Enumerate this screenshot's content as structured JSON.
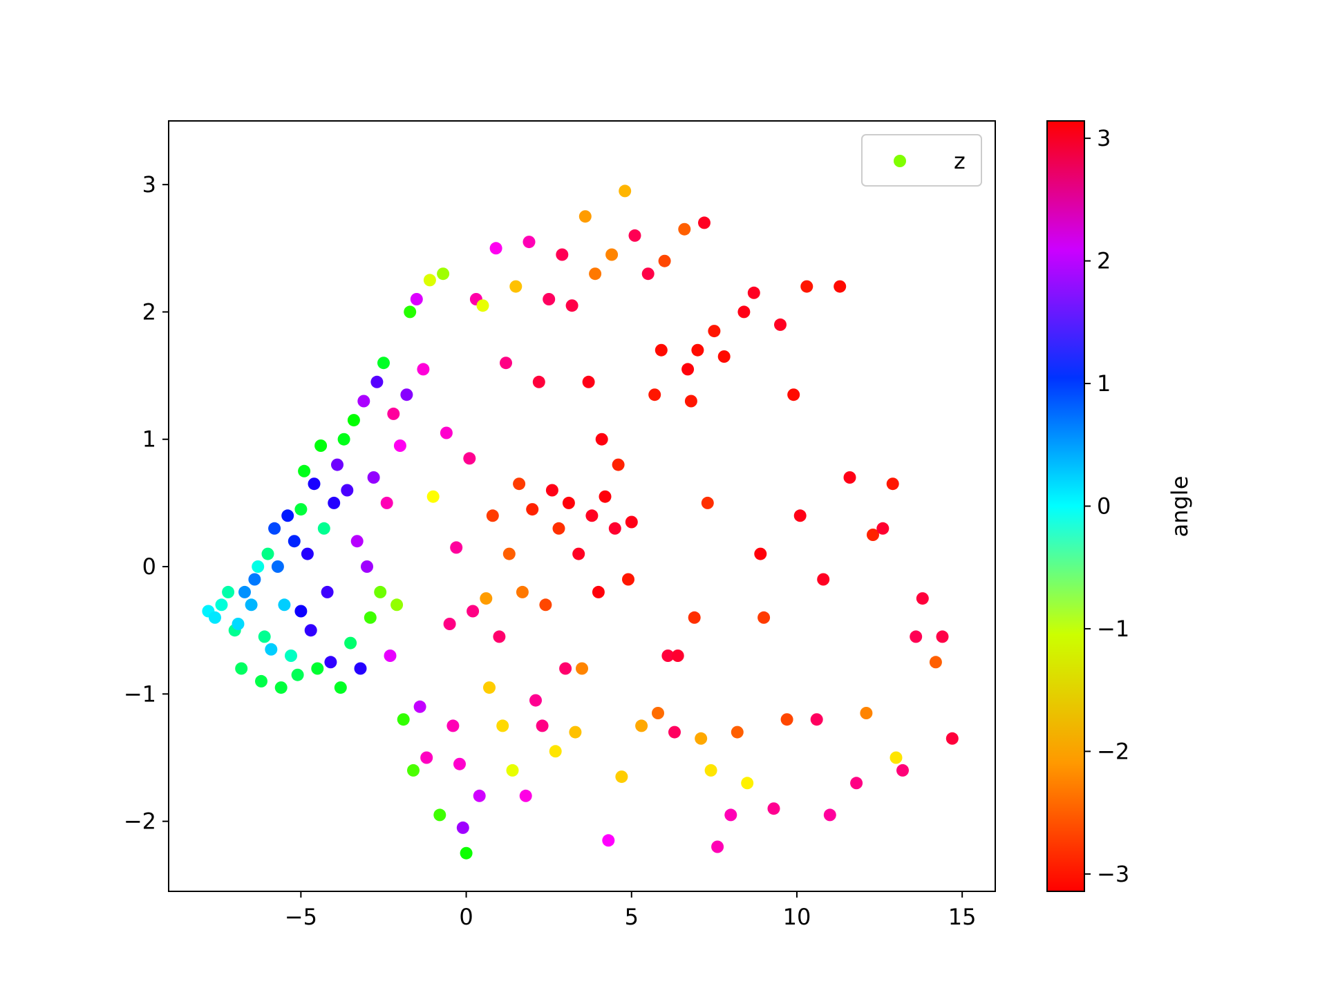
{
  "chart_data": {
    "type": "scatter",
    "title": "",
    "xlabel": "",
    "ylabel": "",
    "xlim": [
      -9,
      16
    ],
    "ylim": [
      -2.55,
      3.5
    ],
    "x_ticks": [
      -5,
      0,
      5,
      10,
      15
    ],
    "x_tick_labels": [
      "−5",
      "0",
      "5",
      "10",
      "15"
    ],
    "y_ticks": [
      -2,
      -1,
      0,
      1,
      2,
      3
    ],
    "y_tick_labels": [
      "−2",
      "−1",
      "0",
      "1",
      "2",
      "3"
    ],
    "grid": false,
    "legend": {
      "position": "upper-right",
      "entries": [
        {
          "label": "z",
          "color": "#80ff00"
        }
      ]
    },
    "colorbar": {
      "label": "angle",
      "colormap": "hsv",
      "vmin": -3.1416,
      "vmax": 3.1416,
      "ticks": [
        -3,
        -2,
        -1,
        0,
        1,
        2,
        3
      ],
      "tick_labels": [
        "−3",
        "−2",
        "−1",
        "0",
        "1",
        "2",
        "3"
      ]
    },
    "series": [
      {
        "name": "z",
        "color_by": "angle",
        "points": [
          [
            -7.8,
            -0.35,
            0.05
          ],
          [
            -7.6,
            -0.4,
            0.1
          ],
          [
            -7.4,
            -0.3,
            -0.15
          ],
          [
            -7.2,
            -0.2,
            -0.35
          ],
          [
            -7.0,
            -0.5,
            -0.45
          ],
          [
            -6.9,
            -0.45,
            0.15
          ],
          [
            -6.8,
            -0.8,
            -0.65
          ],
          [
            -6.7,
            -0.2,
            0.45
          ],
          [
            -6.5,
            -0.3,
            0.3
          ],
          [
            -6.4,
            -0.1,
            0.55
          ],
          [
            -6.3,
            0.0,
            -0.1
          ],
          [
            -6.2,
            -0.9,
            -0.75
          ],
          [
            -6.1,
            -0.55,
            -0.45
          ],
          [
            -6.0,
            0.1,
            -0.5
          ],
          [
            -5.9,
            -0.65,
            0.2
          ],
          [
            -5.8,
            0.3,
            0.75
          ],
          [
            -5.7,
            0.0,
            0.6
          ],
          [
            -5.6,
            -0.95,
            -0.8
          ],
          [
            -5.5,
            -0.3,
            0.2
          ],
          [
            -5.4,
            0.4,
            0.95
          ],
          [
            -5.3,
            -0.7,
            -0.25
          ],
          [
            -5.2,
            0.2,
            0.9
          ],
          [
            -5.1,
            -0.85,
            -0.7
          ],
          [
            -5.0,
            -0.35,
            1.1
          ],
          [
            -5.0,
            0.45,
            -0.8
          ],
          [
            -4.9,
            0.75,
            -0.95
          ],
          [
            -4.8,
            0.1,
            1.2
          ],
          [
            -4.7,
            -0.5,
            1.25
          ],
          [
            -4.6,
            0.65,
            1.15
          ],
          [
            -4.5,
            -0.8,
            -0.85
          ],
          [
            -4.4,
            0.95,
            -1.0
          ],
          [
            -4.3,
            0.3,
            -0.45
          ],
          [
            -4.2,
            -0.2,
            1.3
          ],
          [
            -4.1,
            -0.75,
            1.25
          ],
          [
            -4.0,
            0.5,
            1.2
          ],
          [
            -3.9,
            0.8,
            1.5
          ],
          [
            -3.8,
            -0.95,
            -0.9
          ],
          [
            -3.7,
            1.0,
            -0.95
          ],
          [
            -3.6,
            0.6,
            1.35
          ],
          [
            -3.5,
            -0.6,
            -0.6
          ],
          [
            -3.4,
            1.15,
            -1.05
          ],
          [
            -3.3,
            0.2,
            1.8
          ],
          [
            -3.2,
            -0.8,
            1.2
          ],
          [
            -3.1,
            1.3,
            1.75
          ],
          [
            -3.0,
            0.0,
            1.7
          ],
          [
            -2.9,
            -0.4,
            -1.3
          ],
          [
            -2.8,
            0.7,
            1.65
          ],
          [
            -2.7,
            1.45,
            1.4
          ],
          [
            -2.6,
            -0.2,
            -1.5
          ],
          [
            -2.5,
            1.6,
            -0.9
          ],
          [
            -2.4,
            0.5,
            2.4
          ],
          [
            -2.3,
            -0.7,
            2.0
          ],
          [
            -2.2,
            1.2,
            2.5
          ],
          [
            -2.1,
            -0.3,
            -1.65
          ],
          [
            -2.0,
            0.95,
            2.15
          ],
          [
            -1.9,
            -1.2,
            -1.25
          ],
          [
            -1.8,
            1.35,
            1.6
          ],
          [
            -1.7,
            2.0,
            -1.2
          ],
          [
            -1.6,
            -1.6,
            -1.35
          ],
          [
            -1.5,
            2.1,
            1.95
          ],
          [
            -1.4,
            -1.1,
            1.85
          ],
          [
            -1.3,
            1.55,
            2.25
          ],
          [
            -1.2,
            -1.5,
            2.35
          ],
          [
            -1.1,
            2.25,
            -1.95
          ],
          [
            -1.0,
            0.55,
            -2.1
          ],
          [
            -0.8,
            -1.95,
            -1.3
          ],
          [
            -0.7,
            2.3,
            -1.7
          ],
          [
            -0.6,
            1.05,
            2.3
          ],
          [
            -0.5,
            -0.45,
            2.6
          ],
          [
            -0.4,
            -1.25,
            2.4
          ],
          [
            -0.3,
            0.15,
            2.5
          ],
          [
            -0.2,
            -1.55,
            2.3
          ],
          [
            -0.1,
            -2.05,
            1.7
          ],
          [
            0.0,
            -2.25,
            -1.1
          ],
          [
            0.1,
            0.85,
            2.55
          ],
          [
            0.2,
            -0.35,
            2.6
          ],
          [
            0.3,
            2.1,
            2.45
          ],
          [
            0.4,
            -1.8,
            1.9
          ],
          [
            0.5,
            2.05,
            -2.0
          ],
          [
            0.6,
            -0.25,
            -2.5
          ],
          [
            0.7,
            -0.95,
            -2.3
          ],
          [
            0.8,
            0.4,
            -2.9
          ],
          [
            0.9,
            2.5,
            2.15
          ],
          [
            1.0,
            -0.55,
            2.7
          ],
          [
            1.1,
            -1.25,
            -2.25
          ],
          [
            1.2,
            1.6,
            2.6
          ],
          [
            1.3,
            0.1,
            -2.75
          ],
          [
            1.4,
            -1.6,
            -2.0
          ],
          [
            1.5,
            2.2,
            -2.35
          ],
          [
            1.6,
            0.65,
            -2.9
          ],
          [
            1.7,
            -0.2,
            -2.65
          ],
          [
            1.8,
            -1.8,
            2.2
          ],
          [
            1.9,
            2.55,
            2.4
          ],
          [
            2.0,
            0.45,
            -3.0
          ],
          [
            2.1,
            -1.05,
            2.55
          ],
          [
            2.2,
            1.45,
            2.9
          ],
          [
            2.3,
            -1.25,
            2.6
          ],
          [
            2.4,
            -0.3,
            -2.85
          ],
          [
            2.5,
            2.1,
            2.75
          ],
          [
            2.6,
            0.6,
            3.05
          ],
          [
            2.7,
            -1.45,
            -2.2
          ],
          [
            2.8,
            0.3,
            -2.95
          ],
          [
            2.9,
            2.45,
            2.8
          ],
          [
            3.0,
            -0.8,
            2.7
          ],
          [
            3.1,
            0.5,
            3.1
          ],
          [
            3.2,
            2.05,
            2.85
          ],
          [
            3.3,
            -1.3,
            -2.35
          ],
          [
            3.4,
            0.1,
            3.0
          ],
          [
            3.5,
            -0.8,
            -2.6
          ],
          [
            3.6,
            2.75,
            -2.5
          ],
          [
            3.7,
            1.45,
            3.05
          ],
          [
            3.8,
            0.4,
            3.0
          ],
          [
            3.9,
            2.3,
            -2.65
          ],
          [
            4.0,
            -0.2,
            3.1
          ],
          [
            4.1,
            1.0,
            3.08
          ],
          [
            4.2,
            0.55,
            3.1
          ],
          [
            4.3,
            -2.15,
            2.1
          ],
          [
            4.4,
            2.45,
            -2.6
          ],
          [
            4.5,
            0.3,
            2.95
          ],
          [
            4.6,
            0.8,
            -3.0
          ],
          [
            4.7,
            -1.65,
            -2.3
          ],
          [
            4.8,
            2.95,
            -2.4
          ],
          [
            4.9,
            -0.1,
            -3.05
          ],
          [
            5.0,
            0.35,
            3.05
          ],
          [
            5.1,
            2.6,
            2.8
          ],
          [
            5.3,
            -1.25,
            -2.45
          ],
          [
            5.5,
            2.3,
            2.85
          ],
          [
            5.7,
            1.35,
            -3.05
          ],
          [
            5.8,
            -1.15,
            -2.7
          ],
          [
            5.9,
            1.7,
            -3.1
          ],
          [
            6.0,
            2.4,
            -2.85
          ],
          [
            6.1,
            -0.7,
            2.9
          ],
          [
            6.3,
            -1.3,
            2.75
          ],
          [
            6.4,
            -0.7,
            2.95
          ],
          [
            6.6,
            2.65,
            -2.75
          ],
          [
            6.7,
            1.55,
            3.1
          ],
          [
            6.8,
            1.3,
            -3.05
          ],
          [
            6.9,
            -0.4,
            -2.95
          ],
          [
            7.0,
            1.7,
            -3.1
          ],
          [
            7.1,
            -1.35,
            -2.45
          ],
          [
            7.2,
            2.7,
            3.0
          ],
          [
            7.3,
            0.5,
            -2.95
          ],
          [
            7.4,
            -1.6,
            -2.2
          ],
          [
            7.5,
            1.85,
            -3.05
          ],
          [
            7.6,
            -2.2,
            2.4
          ],
          [
            7.8,
            1.65,
            -3.1
          ],
          [
            8.0,
            -1.95,
            2.4
          ],
          [
            8.2,
            -1.3,
            -2.75
          ],
          [
            8.4,
            2.0,
            3.05
          ],
          [
            8.5,
            -1.7,
            -2.15
          ],
          [
            8.7,
            2.15,
            3.0
          ],
          [
            8.9,
            0.1,
            3.1
          ],
          [
            9.0,
            -0.4,
            -2.9
          ],
          [
            9.3,
            -1.9,
            2.55
          ],
          [
            9.5,
            1.9,
            3.0
          ],
          [
            9.7,
            -1.2,
            -2.85
          ],
          [
            9.9,
            1.35,
            -3.1
          ],
          [
            10.1,
            0.4,
            3.05
          ],
          [
            10.3,
            2.2,
            -3.05
          ],
          [
            10.6,
            -1.2,
            2.75
          ],
          [
            10.8,
            -0.1,
            3.0
          ],
          [
            11.0,
            -1.95,
            2.5
          ],
          [
            11.3,
            2.2,
            -3.1
          ],
          [
            11.6,
            0.7,
            3.05
          ],
          [
            11.8,
            -1.7,
            2.6
          ],
          [
            12.1,
            -1.15,
            -2.6
          ],
          [
            12.3,
            0.25,
            -3.0
          ],
          [
            12.6,
            0.3,
            2.95
          ],
          [
            12.9,
            0.65,
            -3.05
          ],
          [
            13.0,
            -1.5,
            -2.2
          ],
          [
            13.2,
            -1.6,
            2.65
          ],
          [
            13.6,
            -0.55,
            2.8
          ],
          [
            13.8,
            -0.25,
            2.9
          ],
          [
            14.2,
            -0.75,
            -2.75
          ],
          [
            14.4,
            -0.55,
            2.85
          ],
          [
            14.7,
            -1.35,
            2.9
          ]
        ]
      }
    ]
  }
}
